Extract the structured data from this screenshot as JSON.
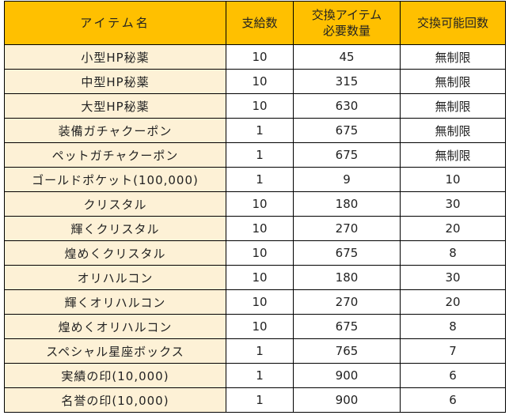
{
  "table": {
    "header": [
      "アイテム名",
      "支給数",
      [
        "交換アイテム",
        "必要数量"
      ],
      "交換可能回数"
    ],
    "rows": [
      [
        "小型HP秘薬",
        "10",
        "45",
        "無制限"
      ],
      [
        "中型HP秘薬",
        "10",
        "315",
        "無制限"
      ],
      [
        "大型HP秘薬",
        "10",
        "630",
        "無制限"
      ],
      [
        "装備ガチャクーポン",
        "1",
        "675",
        "無制限"
      ],
      [
        "ペットガチャクーポン",
        "1",
        "675",
        "無制限"
      ],
      [
        "ゴールドポケット(100,000)",
        "1",
        "9",
        "10"
      ],
      [
        "クリスタル",
        "10",
        "180",
        "30"
      ],
      [
        "輝くクリスタル",
        "10",
        "270",
        "20"
      ],
      [
        "煌めくクリスタル",
        "10",
        "675",
        "8"
      ],
      [
        "オリハルコン",
        "10",
        "180",
        "30"
      ],
      [
        "輝くオリハルコン",
        "10",
        "270",
        "20"
      ],
      [
        "煌めくオリハルコン",
        "10",
        "675",
        "8"
      ],
      [
        "スペシャル星座ボックス",
        "1",
        "765",
        "7"
      ],
      [
        "実績の印(10,000)",
        "1",
        "900",
        "6"
      ],
      [
        "名誉の印(10,000)",
        "1",
        "900",
        "6"
      ]
    ]
  }
}
